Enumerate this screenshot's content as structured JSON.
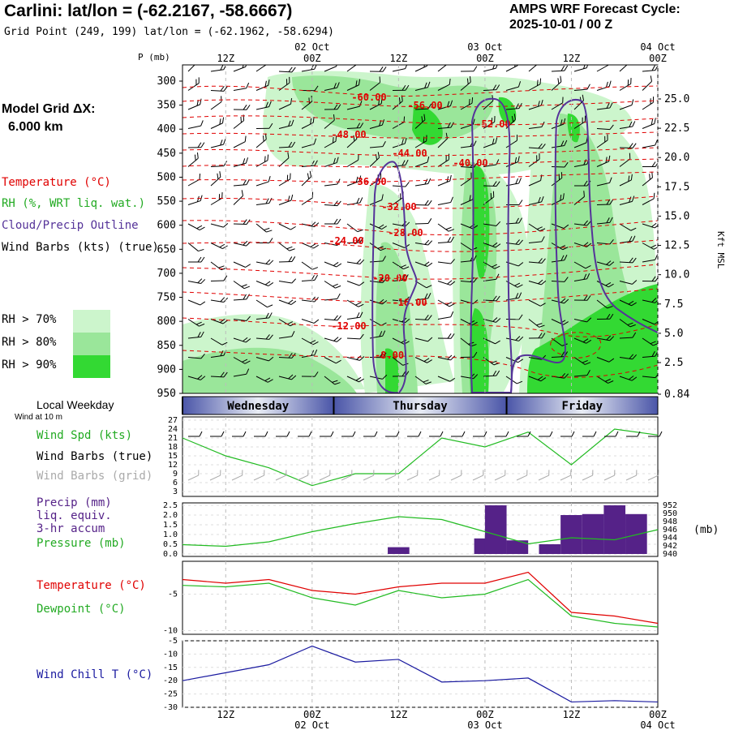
{
  "header": {
    "title": "Carlini:  lat/lon = (-62.2167, -58.6667)",
    "subtitle": "Grid Point (249, 199) lat/lon = (-62.1962, -58.6294)",
    "forecast_line1": "AMPS WRF Forecast Cycle:",
    "forecast_line2": "2025-10-01 / 00  Z"
  },
  "side": {
    "grid_line1": "Model Grid ΔX:",
    "grid_line2": "6.000 km",
    "temperature": "Temperature (°C)",
    "rh": "RH (%, WRT liq. wat.)",
    "cloud": "Cloud/Precip Outline",
    "wind": "Wind Barbs (kts) (true)",
    "rh70": "RH > 70%",
    "rh80": "RH > 80%",
    "rh90": "RH > 90%",
    "local_weekday": "Local Weekday",
    "wind_at": "Wind at 10 m",
    "wind_spd": "Wind Spd (kts)",
    "wind_barbs_true": "Wind Barbs (true)",
    "wind_barbs_grid": "Wind Barbs (grid)",
    "precip1": "Precip (mm)",
    "precip2": "liq. equiv.",
    "precip3": "3-hr accum",
    "pressure": "Pressure (mb)",
    "temp_lower": "Temperature (°C)",
    "dewpoint": "Dewpoint (°C)",
    "windchill": "Wind Chill T (°C)"
  },
  "colors": {
    "temperature": "#e00000",
    "rh70": "#ccf5cc",
    "rh80": "#9ae69a",
    "rh90": "#33d933",
    "cloud_outline": "#553399",
    "wind_speed": "#22bb22",
    "precip": "#552288",
    "pressure": "#22bb22",
    "dewpoint": "#22bb22",
    "windchill": "#1a1aa0",
    "grid_barbs": "#aaaaaa"
  },
  "chart_data": [
    {
      "type": "heatmap",
      "name": "cross-section",
      "ylabel": "P (mb)",
      "ylabel_right": "Kft MSL",
      "y_ticks": [
        "300",
        "350",
        "400",
        "450",
        "500",
        "550",
        "600",
        "650",
        "700",
        "750",
        "800",
        "850",
        "900",
        "950"
      ],
      "y_ticks_right": [
        "25.0",
        "22.5",
        "20.0",
        "17.5",
        "15.0",
        "12.5",
        "10.0",
        "7.5",
        "5.0",
        "2.5",
        "0.84"
      ],
      "time_ticks_top": [
        {
          "hour": 6,
          "main": "12Z",
          "date": ""
        },
        {
          "hour": 18,
          "main": "00Z",
          "date": "02 Oct"
        },
        {
          "hour": 30,
          "main": "12Z",
          "date": ""
        },
        {
          "hour": 42,
          "main": "00Z",
          "date": "03 Oct"
        },
        {
          "hour": 54,
          "main": "12Z",
          "date": ""
        },
        {
          "hour": 66,
          "main": "00Z",
          "date": "04 Oct"
        }
      ],
      "temperature_labels": [
        "-60.00",
        "-56.00",
        "-52.00",
        "-48.00",
        "-44.00",
        "-40.00",
        "-36.00",
        "-32.00",
        "-28.00",
        "-24.00",
        "-20.00",
        "-16.00",
        "-12.00",
        "-8.00"
      ],
      "weekdays": [
        "Wednesday",
        "Thursday",
        "Friday"
      ]
    },
    {
      "type": "line",
      "name": "wind speed",
      "y_ticks": [
        "27",
        "24",
        "21",
        "18",
        "15",
        "12",
        "9",
        "6",
        "3"
      ],
      "ylim": [
        3,
        27
      ],
      "x_hours": [
        0,
        6,
        12,
        18,
        24,
        30,
        36,
        42,
        48,
        54,
        60,
        66
      ],
      "values": [
        21,
        15,
        11,
        5,
        9,
        9,
        21,
        18,
        23,
        12,
        24,
        22
      ]
    },
    {
      "type": "bar",
      "name": "precip and pressure",
      "y_ticks_left": [
        "2.5",
        "2.0",
        "1.5",
        "1.0",
        "0.5",
        "0.0"
      ],
      "y_ticks_right": [
        "952",
        "950",
        "948",
        "946",
        "944",
        "942",
        "940"
      ],
      "ylim": [
        0,
        2.5
      ],
      "ylim_right": [
        940,
        952
      ],
      "precip_hours": [
        30,
        42,
        43.5,
        46.5,
        51,
        54,
        57,
        60,
        63
      ],
      "precip_values": [
        0.35,
        0.8,
        2.5,
        0.7,
        0.5,
        2.0,
        2.05,
        2.5,
        2.05
      ],
      "pressure_hours": [
        0,
        6,
        12,
        18,
        24,
        30,
        36,
        42,
        48,
        54,
        60,
        66
      ],
      "pressure_values": [
        942.3,
        941.9,
        943.0,
        945.5,
        947.5,
        949.2,
        948.5,
        945.5,
        942.5,
        944.0,
        943.5,
        946.0
      ]
    },
    {
      "type": "line",
      "name": "temperature and dewpoint",
      "y_ticks": [
        "-5",
        "-10"
      ],
      "ylim": [
        -10.5,
        -0.5
      ],
      "x_hours": [
        0,
        6,
        12,
        18,
        24,
        30,
        36,
        42,
        48,
        54,
        60,
        66
      ],
      "temperature": [
        -3.0,
        -3.5,
        -3.0,
        -4.5,
        -5.0,
        -4.0,
        -3.5,
        -3.5,
        -2.0,
        -7.5,
        -8.0,
        -9.0
      ],
      "dewpoint": [
        -3.8,
        -4.0,
        -3.5,
        -5.5,
        -6.5,
        -4.5,
        -5.5,
        -5.0,
        -3.0,
        -8.0,
        -9.0,
        -9.5
      ]
    },
    {
      "type": "line",
      "name": "wind chill",
      "y_ticks": [
        "-5",
        "-10",
        "-15",
        "-20",
        "-25",
        "-30"
      ],
      "ylim": [
        -30,
        -5
      ],
      "x_hours": [
        0,
        6,
        12,
        18,
        24,
        30,
        36,
        42,
        48,
        54,
        60,
        66
      ],
      "values": [
        -20,
        -17,
        -14,
        -7,
        -13,
        -12,
        -20.5,
        -20,
        -19,
        -28,
        -27.5,
        -28
      ],
      "time_ticks_bottom": [
        {
          "hour": 6,
          "main": "12Z",
          "date": ""
        },
        {
          "hour": 18,
          "main": "00Z",
          "date": "02 Oct"
        },
        {
          "hour": 30,
          "main": "12Z",
          "date": ""
        },
        {
          "hour": 42,
          "main": "00Z",
          "date": "03 Oct"
        },
        {
          "hour": 54,
          "main": "12Z",
          "date": ""
        },
        {
          "hour": 66,
          "main": "00Z",
          "date": "04 Oct"
        }
      ]
    }
  ]
}
